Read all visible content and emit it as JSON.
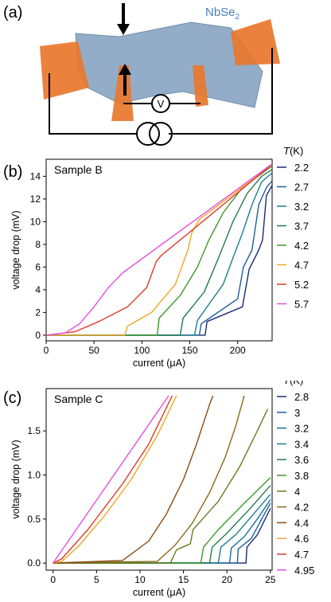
{
  "panel_a": {
    "label": "(a)",
    "material_label": "NbSe",
    "material_subscript": "2",
    "voltmeter_symbol": "V",
    "colors": {
      "flake": "#8ea9c6",
      "contacts": "#e8772e",
      "material_label": "#4a7fb8"
    }
  },
  "chart_data": [
    {
      "type": "line",
      "panel_label": "(b)",
      "sample": "Sample B",
      "xlabel": "current (μA)",
      "ylabel": "voltage drop (mV)",
      "xlim": [
        0,
        236
      ],
      "ylim": [
        -0.5,
        15.5
      ],
      "xticks": [
        0,
        50,
        100,
        150,
        200
      ],
      "yticks": [
        0,
        2,
        4,
        6,
        8,
        10,
        12,
        14
      ],
      "legend_title": "T(K)",
      "legend_position": "right",
      "series": [
        {
          "name": "2.2",
          "color": "#1c2a7a",
          "points": [
            [
              0,
              0
            ],
            [
              166,
              0
            ],
            [
              168,
              1.2
            ],
            [
              205,
              2.5
            ],
            [
              212,
              5.8
            ],
            [
              222,
              7.5
            ],
            [
              226,
              8.4
            ],
            [
              230,
              12.3
            ],
            [
              236,
              13.2
            ]
          ]
        },
        {
          "name": "2.7",
          "color": "#1f5f9e",
          "points": [
            [
              0,
              0
            ],
            [
              160,
              0
            ],
            [
              162,
              1.0
            ],
            [
              200,
              3.2
            ],
            [
              206,
              6.0
            ],
            [
              215,
              7.5
            ],
            [
              222,
              11.5
            ],
            [
              230,
              13.0
            ],
            [
              236,
              13.6
            ]
          ]
        },
        {
          "name": "3.2",
          "color": "#1c7f8e",
          "points": [
            [
              0,
              0
            ],
            [
              155,
              0
            ],
            [
              158,
              1.3
            ],
            [
              185,
              4.5
            ],
            [
              195,
              6.8
            ],
            [
              205,
              9.0
            ],
            [
              215,
              11.5
            ],
            [
              225,
              13.5
            ],
            [
              236,
              14.3
            ]
          ]
        },
        {
          "name": "3.7",
          "color": "#237a4e",
          "points": [
            [
              0,
              0
            ],
            [
              140,
              0
            ],
            [
              143,
              1.5
            ],
            [
              165,
              3.8
            ],
            [
              180,
              6.8
            ],
            [
              195,
              10.0
            ],
            [
              210,
              12.5
            ],
            [
              225,
              14.0
            ],
            [
              236,
              14.6
            ]
          ]
        },
        {
          "name": "4.2",
          "color": "#3d9a2a",
          "points": [
            [
              0,
              0
            ],
            [
              116,
              0
            ],
            [
              118,
              1.5
            ],
            [
              140,
              3.5
            ],
            [
              158,
              6.0
            ],
            [
              170,
              8.4
            ],
            [
              185,
              10.8
            ],
            [
              205,
              13.0
            ],
            [
              236,
              14.9
            ]
          ]
        },
        {
          "name": "4.7",
          "color": "#f5a623",
          "points": [
            [
              0,
              0
            ],
            [
              82,
              0
            ],
            [
              85,
              0.8
            ],
            [
              110,
              2.0
            ],
            [
              135,
              4.5
            ],
            [
              148,
              7.5
            ],
            [
              152,
              9.0
            ],
            [
              160,
              10.2
            ],
            [
              236,
              15.0
            ]
          ]
        },
        {
          "name": "5.2",
          "color": "#e03b2c",
          "points": [
            [
              0,
              0
            ],
            [
              30,
              0.3
            ],
            [
              55,
              1.2
            ],
            [
              85,
              2.5
            ],
            [
              105,
              4.2
            ],
            [
              115,
              6.5
            ],
            [
              120,
              7.0
            ],
            [
              236,
              15.05
            ]
          ]
        },
        {
          "name": "5.7",
          "color": "#e84fe0",
          "points": [
            [
              0,
              0
            ],
            [
              20,
              0.2
            ],
            [
              35,
              1.0
            ],
            [
              50,
              2.5
            ],
            [
              65,
              4.2
            ],
            [
              80,
              5.5
            ],
            [
              236,
              15.1
            ]
          ]
        }
      ]
    },
    {
      "type": "line",
      "panel_label": "(c)",
      "sample": "Sample C",
      "xlabel": "current (μA)",
      "ylabel": "voltage drop (mV)",
      "xlim": [
        -0.8,
        25.2
      ],
      "ylim": [
        -0.08,
        1.98
      ],
      "xticks": [
        0,
        5,
        10,
        15,
        20,
        25
      ],
      "yticks": [
        0.0,
        0.5,
        1.0,
        1.5
      ],
      "legend_title": "T(K)",
      "legend_position": "right",
      "series": [
        {
          "name": "2.8",
          "color": "#1c2a7a",
          "points": [
            [
              0,
              0
            ],
            [
              22.2,
              0
            ],
            [
              22.3,
              0.18
            ],
            [
              23.5,
              0.32
            ],
            [
              24.4,
              0.5
            ],
            [
              25,
              0.62
            ]
          ]
        },
        {
          "name": "3",
          "color": "#1f5f9e",
          "points": [
            [
              0,
              0
            ],
            [
              21.2,
              0
            ],
            [
              21.3,
              0.16
            ],
            [
              22.8,
              0.28
            ],
            [
              24,
              0.5
            ],
            [
              25,
              0.68
            ]
          ]
        },
        {
          "name": "3.2",
          "color": "#1c6f9e",
          "points": [
            [
              0,
              0
            ],
            [
              20.3,
              0
            ],
            [
              20.5,
              0.17
            ],
            [
              22,
              0.3
            ],
            [
              23.5,
              0.5
            ],
            [
              25,
              0.72
            ]
          ]
        },
        {
          "name": "3.4",
          "color": "#1c7f8e",
          "points": [
            [
              0,
              0
            ],
            [
              19,
              0
            ],
            [
              19.3,
              0.18
            ],
            [
              21,
              0.32
            ],
            [
              23,
              0.55
            ],
            [
              25,
              0.78
            ]
          ]
        },
        {
          "name": "3.6",
          "color": "#237a4e",
          "points": [
            [
              0,
              0
            ],
            [
              18,
              0
            ],
            [
              18.3,
              0.18
            ],
            [
              20,
              0.34
            ],
            [
              22.5,
              0.6
            ],
            [
              25,
              0.88
            ]
          ]
        },
        {
          "name": "3.8",
          "color": "#3d9a2a",
          "points": [
            [
              0,
              0
            ],
            [
              17,
              0
            ],
            [
              17.3,
              0.18
            ],
            [
              19,
              0.38
            ],
            [
              22,
              0.68
            ],
            [
              25,
              0.97
            ]
          ]
        },
        {
          "name": "4",
          "color": "#6b7a1e",
          "points": [
            [
              0,
              0
            ],
            [
              13.5,
              0
            ],
            [
              14.2,
              0.15
            ],
            [
              15.8,
              0.22
            ],
            [
              16.1,
              0.38
            ],
            [
              19,
              0.7
            ],
            [
              21.5,
              1.1
            ],
            [
              23.5,
              1.5
            ],
            [
              24.7,
              1.75
            ]
          ]
        },
        {
          "name": "4.2",
          "color": "#8a6a1a",
          "points": [
            [
              0,
              0
            ],
            [
              12,
              0.02
            ],
            [
              14,
              0.2
            ],
            [
              16,
              0.45
            ],
            [
              18,
              0.8
            ],
            [
              19.8,
              1.2
            ],
            [
              21,
              1.55
            ],
            [
              22,
              1.9
            ]
          ]
        },
        {
          "name": "4.4",
          "color": "#8b4a14",
          "points": [
            [
              0,
              0
            ],
            [
              8,
              0.03
            ],
            [
              11,
              0.25
            ],
            [
              13,
              0.55
            ],
            [
              15,
              0.95
            ],
            [
              16.5,
              1.35
            ],
            [
              18,
              1.8
            ],
            [
              18.4,
              1.9
            ]
          ]
        },
        {
          "name": "4.6",
          "color": "#f5a623",
          "points": [
            [
              0,
              0
            ],
            [
              1,
              0.02
            ],
            [
              3,
              0.2
            ],
            [
              6,
              0.55
            ],
            [
              9,
              0.95
            ],
            [
              12,
              1.45
            ],
            [
              14.2,
              1.9
            ]
          ]
        },
        {
          "name": "4.7",
          "color": "#e03b2c",
          "points": [
            [
              0,
              0
            ],
            [
              1,
              0.05
            ],
            [
              4,
              0.38
            ],
            [
              8,
              0.9
            ],
            [
              11,
              1.35
            ],
            [
              13.7,
              1.9
            ]
          ]
        },
        {
          "name": "4.95",
          "color": "#e84fe0",
          "points": [
            [
              0,
              0
            ],
            [
              13.3,
              1.9
            ]
          ]
        }
      ]
    }
  ]
}
